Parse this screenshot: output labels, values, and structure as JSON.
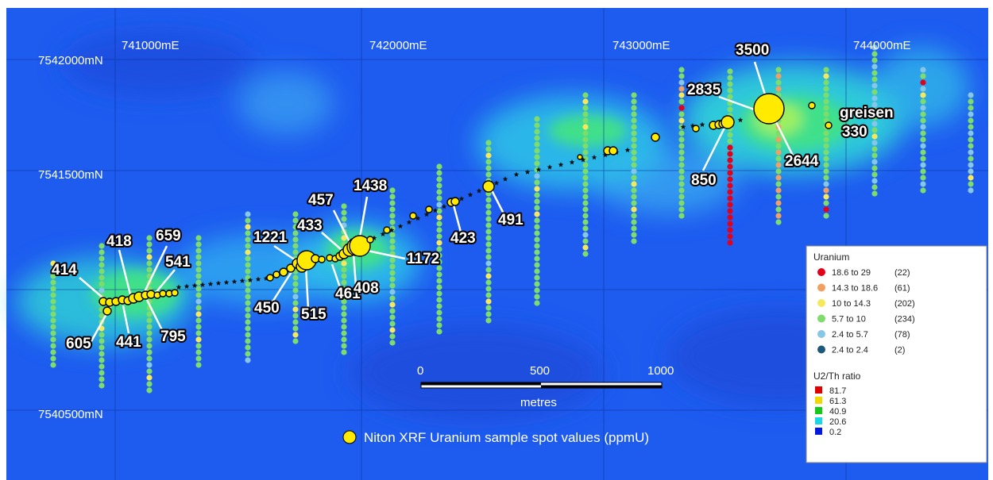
{
  "map": {
    "eastings": [
      "741000mE",
      "742000mE",
      "743000mE",
      "744000mE"
    ],
    "northings": [
      "7542000mN",
      "7541500mN",
      "7540500mN"
    ]
  },
  "sample_labels": [
    {
      "text": "414"
    },
    {
      "text": "418"
    },
    {
      "text": "659"
    },
    {
      "text": "541"
    },
    {
      "text": "605"
    },
    {
      "text": "441"
    },
    {
      "text": "795"
    },
    {
      "text": "1221"
    },
    {
      "text": "433"
    },
    {
      "text": "457"
    },
    {
      "text": "1438"
    },
    {
      "text": "1172"
    },
    {
      "text": "450"
    },
    {
      "text": "515"
    },
    {
      "text": "461"
    },
    {
      "text": "408"
    },
    {
      "text": "423"
    },
    {
      "text": "491"
    },
    {
      "text": "3500"
    },
    {
      "text": "2835"
    },
    {
      "text": "850"
    },
    {
      "text": "2644"
    },
    {
      "text": "330"
    }
  ],
  "area_label": "greisen",
  "scale_bar": {
    "ticks": [
      "0",
      "500",
      "1000"
    ],
    "unit": "metres"
  },
  "sample_caption": "Niton XRF Uranium sample spot values (ppmU)",
  "legend": {
    "uranium_title": "Uranium",
    "uranium_classes": [
      {
        "range": "18.6 to 29",
        "count": "(22)",
        "color": "#e3001b"
      },
      {
        "range": "14.3 to 18.6",
        "count": "(61)",
        "color": "#f0a060"
      },
      {
        "range": "10   to 14.3",
        "count": "(202)",
        "color": "#f5e85a"
      },
      {
        "range": "5.7 to 10",
        "count": "(234)",
        "color": "#7ddc6a"
      },
      {
        "range": "2.4 to  5.7",
        "count": "(78)",
        "color": "#86c6e6"
      },
      {
        "range": "2.4 to  2.4",
        "count": "(2)",
        "color": "#1d5a7a"
      }
    ],
    "ratio_title": "U2/Th ratio",
    "ratio_classes": [
      {
        "value": "81.7",
        "color": "#e00000"
      },
      {
        "value": "61.3",
        "color": "#f0d800"
      },
      {
        "value": "40.9",
        "color": "#18c818"
      },
      {
        "value": "20.6",
        "color": "#18d8e8"
      },
      {
        "value": "0.2",
        "color": "#0018e0"
      }
    ]
  },
  "colors": {
    "sample_fill": "#ffea00",
    "background": "#1e5cf0"
  }
}
